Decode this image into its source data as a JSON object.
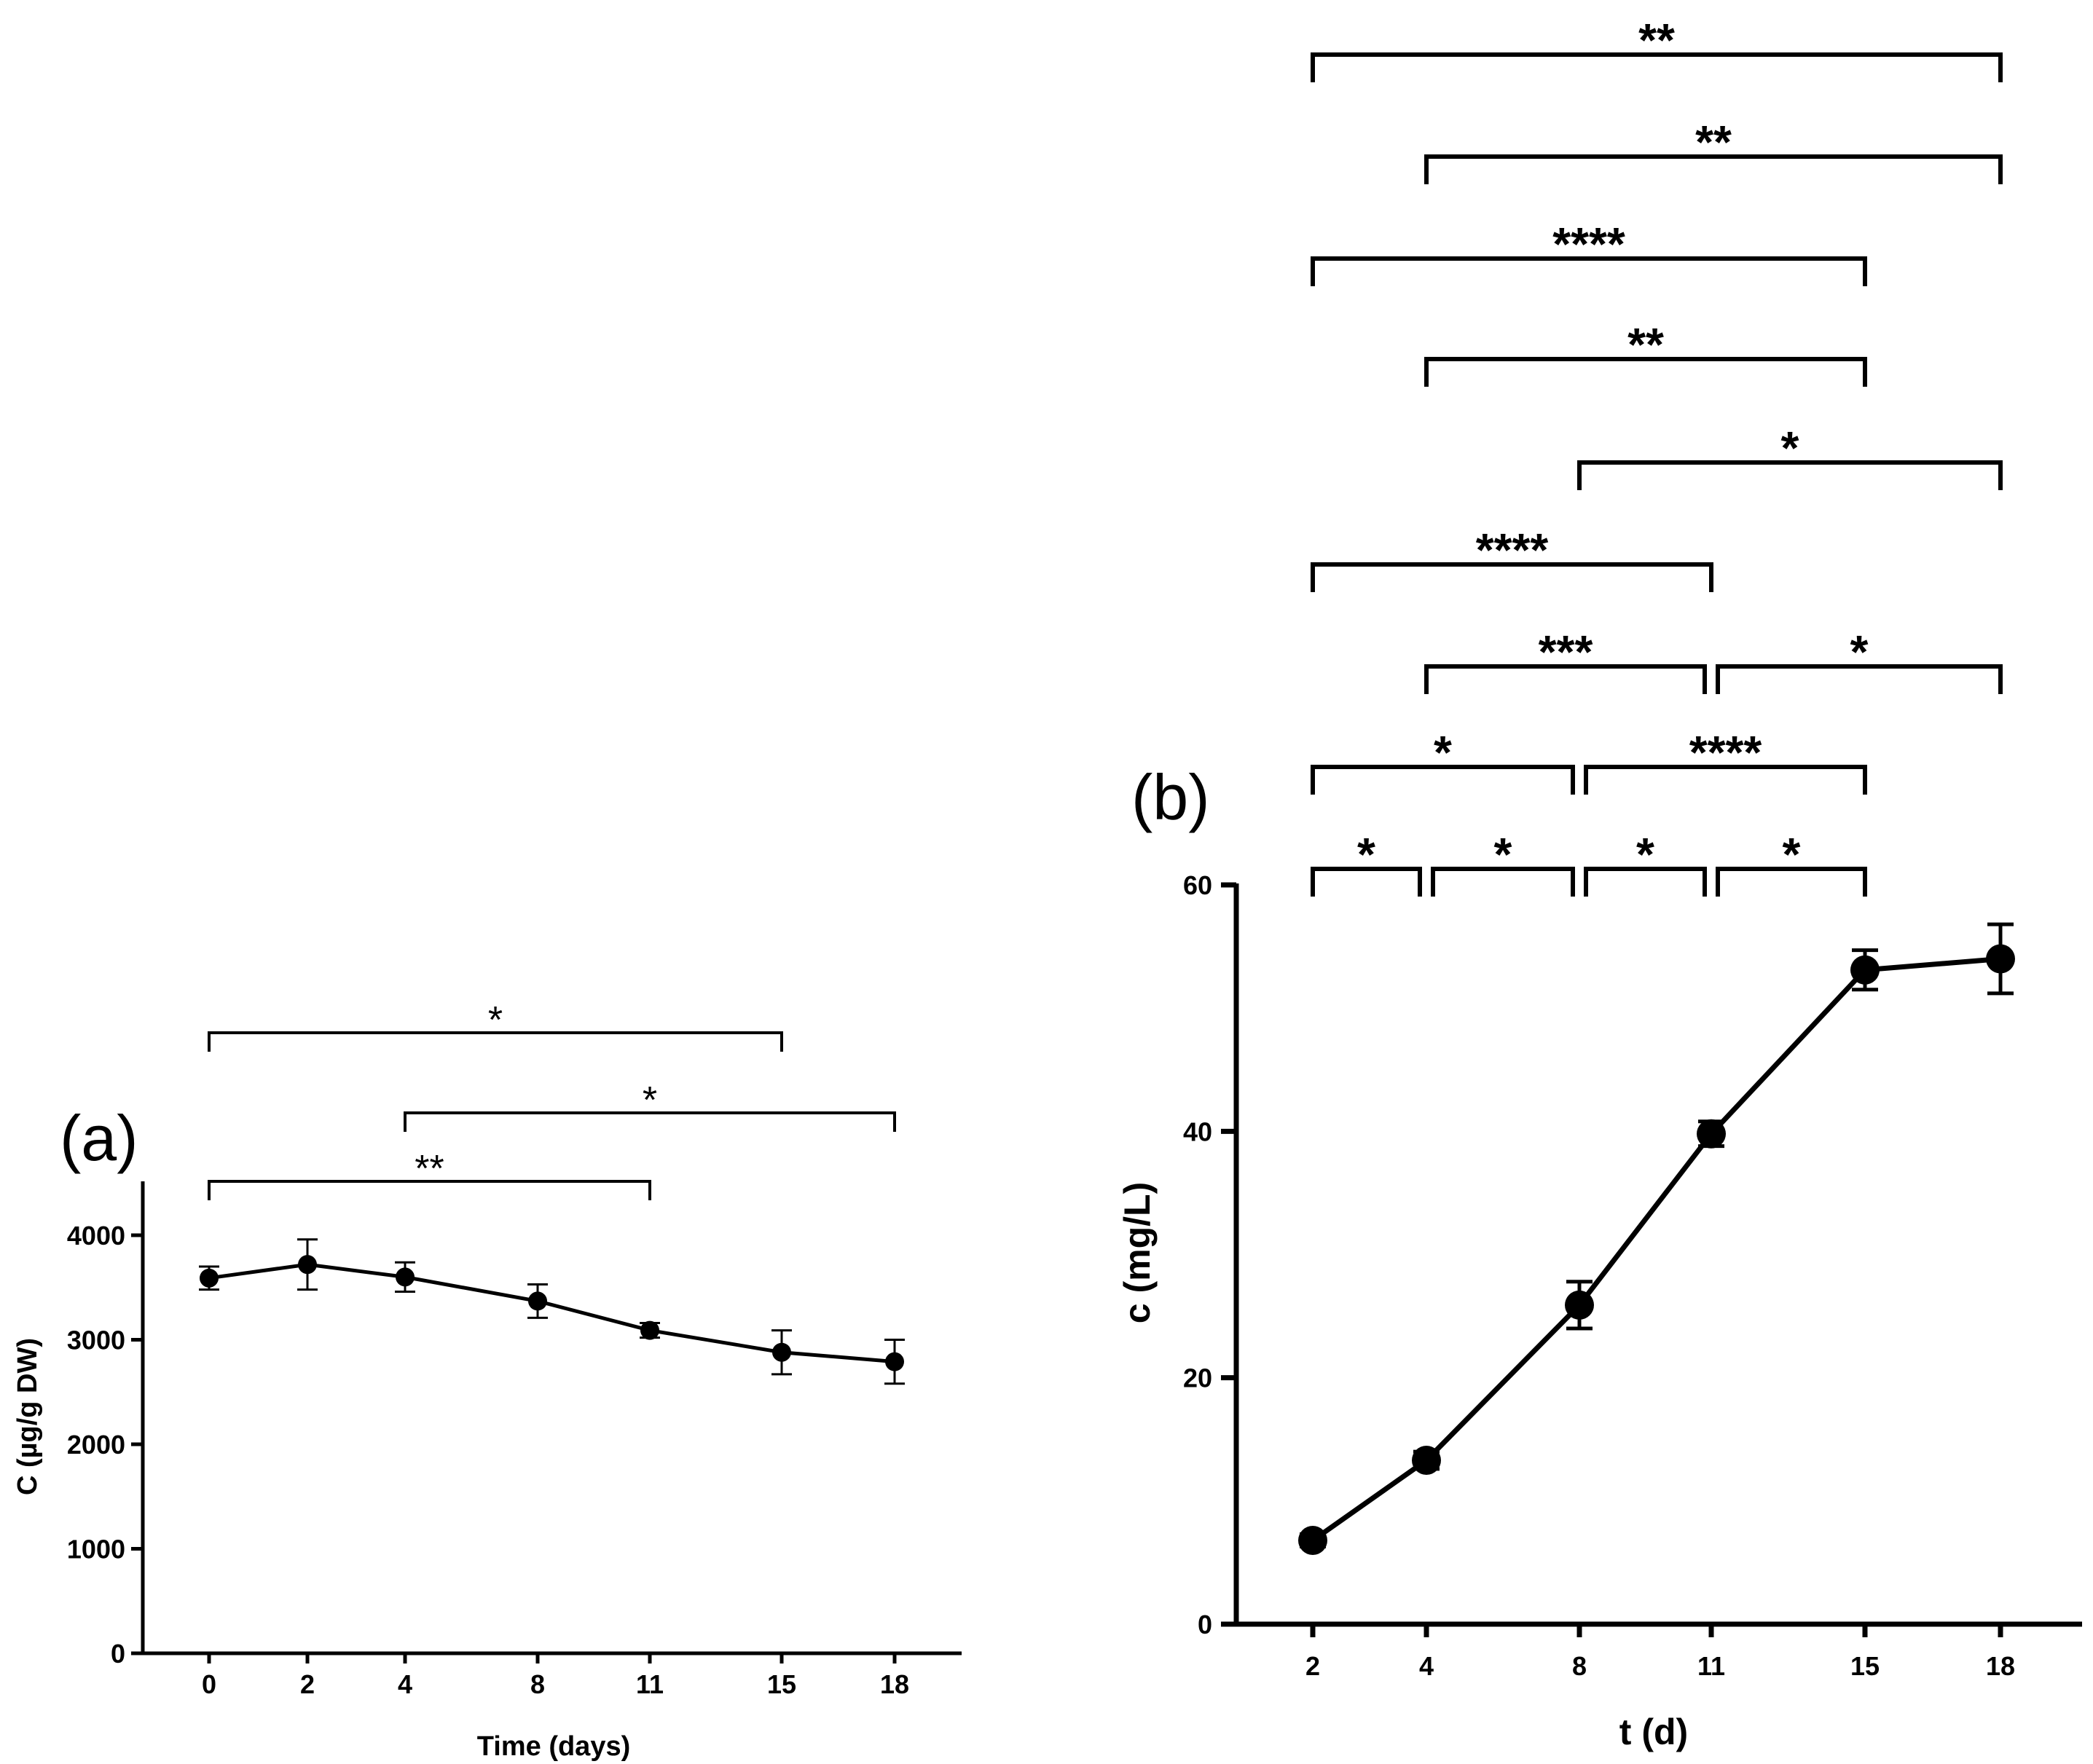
{
  "colors": {
    "ink": "#000000",
    "background": "#ffffff"
  },
  "chart_data": [
    {
      "panel": "(a)",
      "type": "line",
      "xlabel": "Time (days)",
      "ylabel": "C (µg/g DW)",
      "categories": [
        "0",
        "2",
        "4",
        "8",
        "11",
        "15",
        "18"
      ],
      "x": [
        0,
        2,
        4,
        8,
        11,
        15,
        18
      ],
      "y": [
        3590,
        3720,
        3600,
        3370,
        3090,
        2880,
        2790
      ],
      "error": [
        110,
        240,
        140,
        160,
        70,
        210,
        210
      ],
      "ylim": [
        0,
        4500
      ],
      "yticks": [
        "0",
        "1000",
        "2000",
        "3000",
        "4000"
      ],
      "significance": [
        {
          "from": "0",
          "to": "15",
          "label": "*"
        },
        {
          "from": "4",
          "to": "18",
          "label": "*"
        },
        {
          "from": "0",
          "to": "11",
          "label": "**"
        }
      ]
    },
    {
      "panel": "(b)",
      "type": "line",
      "xlabel": "t (d)",
      "ylabel": "c (mg/L)",
      "categories": [
        "2",
        "4",
        "8",
        "11",
        "15",
        "18"
      ],
      "x": [
        2,
        4,
        8,
        11,
        15,
        18
      ],
      "y": [
        6.8,
        13.3,
        25.9,
        39.8,
        53.1,
        54.0
      ],
      "error": [
        0.5,
        0.7,
        1.9,
        1.0,
        1.6,
        2.8
      ],
      "ylim": [
        0,
        60
      ],
      "yticks": [
        "0",
        "20",
        "40",
        "60"
      ],
      "significance": [
        {
          "from": "2",
          "to": "18",
          "label": "**"
        },
        {
          "from": "4",
          "to": "18",
          "label": "**"
        },
        {
          "from": "2",
          "to": "15",
          "label": "****"
        },
        {
          "from": "4",
          "to": "15",
          "label": "**"
        },
        {
          "from": "8",
          "to": "18",
          "label": "*"
        },
        {
          "from": "2",
          "to": "11",
          "label": "****"
        },
        {
          "from": "4",
          "to": "11",
          "label": "***"
        },
        {
          "from": "11",
          "to": "18",
          "label": "*"
        },
        {
          "from": "2",
          "to": "8",
          "label": "*"
        },
        {
          "from": "8",
          "to": "15",
          "label": "****"
        },
        {
          "from": "2",
          "to": "4",
          "label": "*"
        },
        {
          "from": "4",
          "to": "8",
          "label": "*"
        },
        {
          "from": "8",
          "to": "11",
          "label": "*"
        },
        {
          "from": "11",
          "to": "15",
          "label": "*"
        }
      ]
    }
  ]
}
